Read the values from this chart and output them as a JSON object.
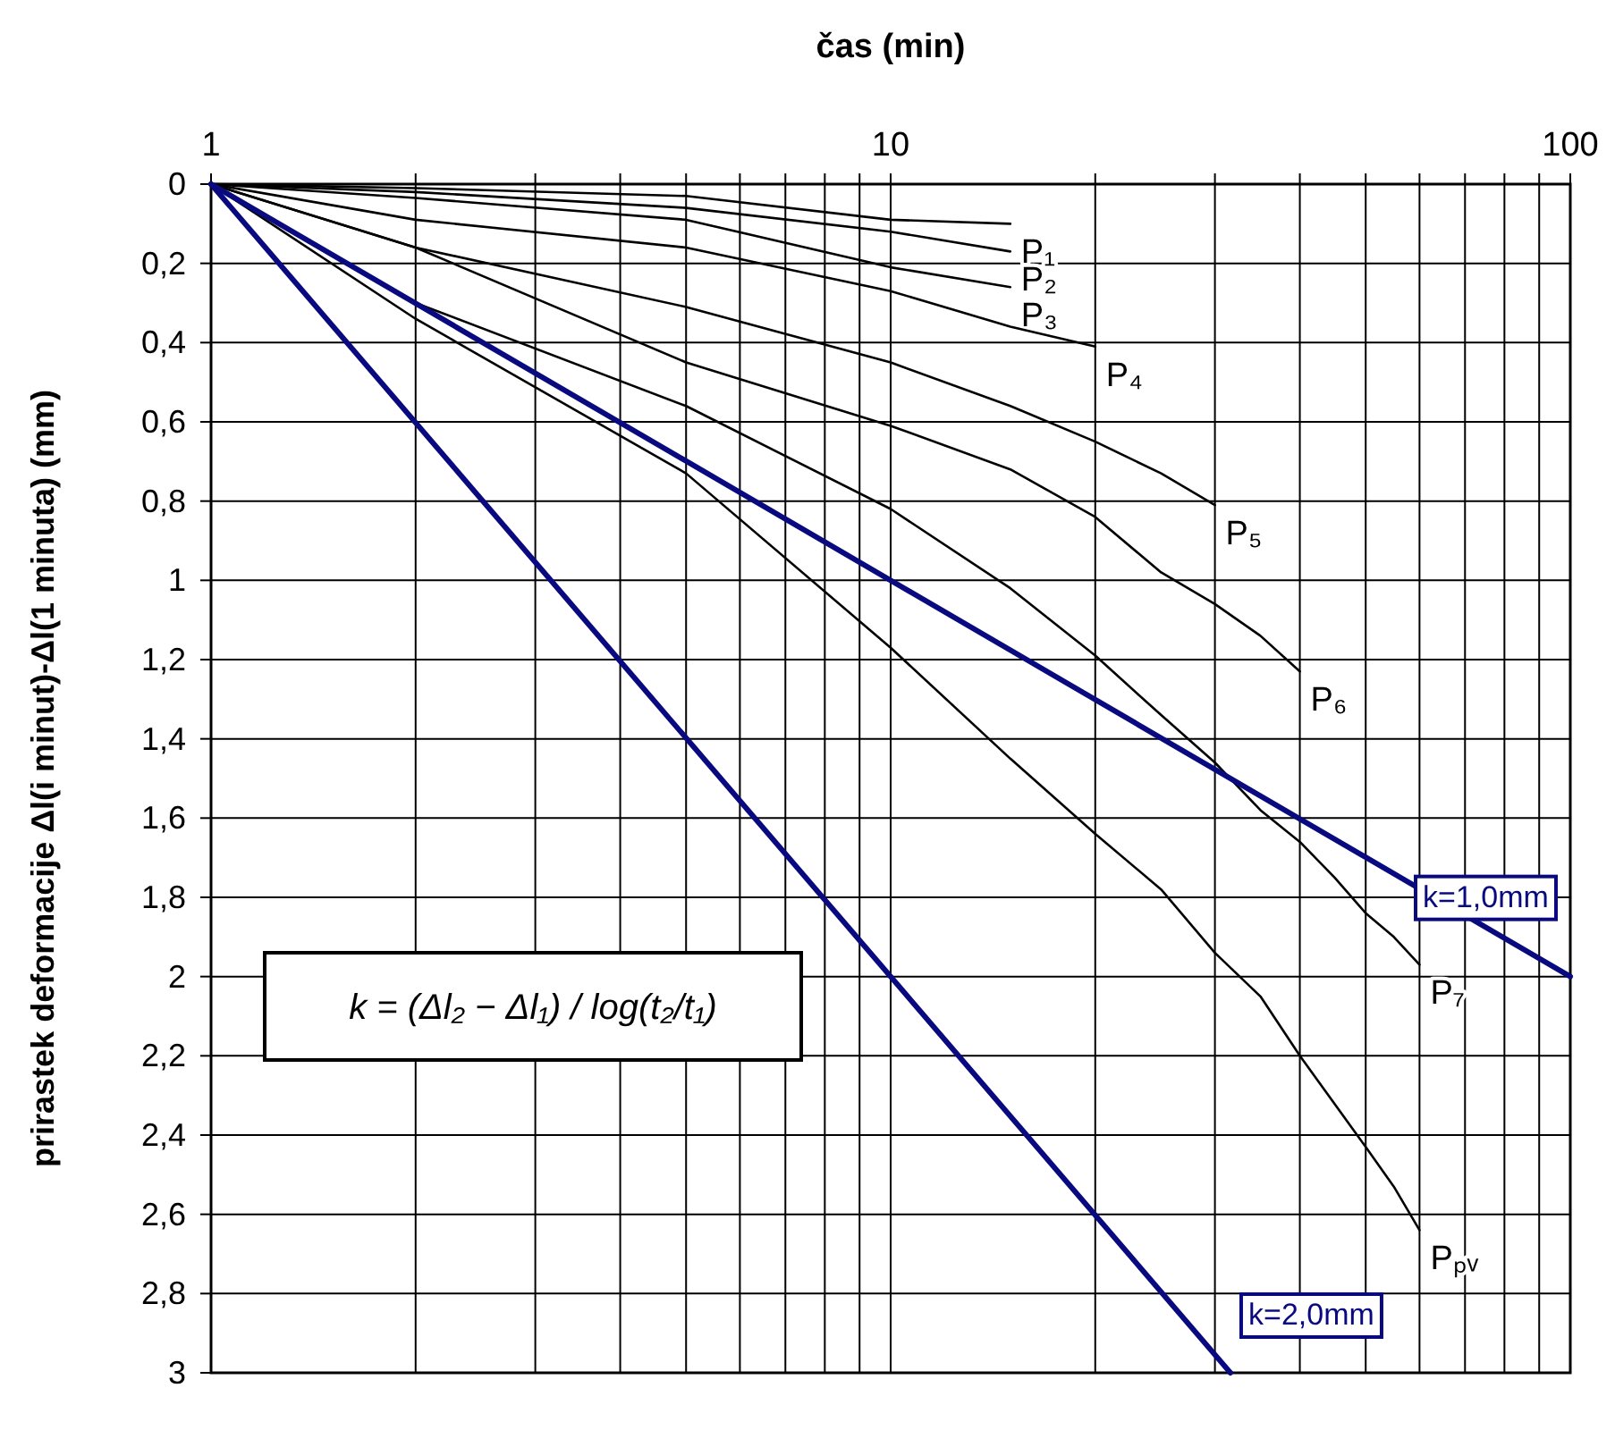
{
  "chart_data": {
    "type": "line",
    "xlabel": "čas (min)",
    "ylabel": "prirastek deformacije Δl(i minut)-Δl(1 minuta) (mm)",
    "log": "x",
    "grid": true,
    "marker": "none",
    "line_style": "solid",
    "xlim": [
      1,
      100
    ],
    "ylim": [
      3,
      0
    ],
    "xticks": [
      1,
      {
        "value": 2,
        "label": null
      },
      {
        "value": 3,
        "label": null
      },
      {
        "value": 4,
        "label": null
      },
      {
        "value": 5,
        "label": null
      },
      {
        "value": 6,
        "label": null
      },
      {
        "value": 7,
        "label": null
      },
      {
        "value": 8,
        "label": null
      },
      {
        "value": 9,
        "label": null
      },
      10,
      {
        "value": 20,
        "label": null
      },
      {
        "value": 30,
        "label": null
      },
      {
        "value": 40,
        "label": null
      },
      {
        "value": 50,
        "label": null
      },
      {
        "value": 60,
        "label": null
      },
      {
        "value": 70,
        "label": null
      },
      {
        "value": 80,
        "label": null
      },
      {
        "value": 90,
        "label": null
      },
      100
    ],
    "yticks": [
      0,
      {
        "value": 0.2,
        "label": "0,2"
      },
      {
        "value": 0.4,
        "label": "0,4"
      },
      {
        "value": 0.6,
        "label": "0,6"
      },
      {
        "value": 0.8,
        "label": "0,8"
      },
      1,
      {
        "value": 1.2,
        "label": "1,2"
      },
      {
        "value": 1.4,
        "label": "1,4"
      },
      {
        "value": 1.6,
        "label": "1,6"
      },
      {
        "value": 1.8,
        "label": "1,8"
      },
      2,
      {
        "value": 2.2,
        "label": "2,2"
      },
      {
        "value": 2.4,
        "label": "2,4"
      },
      {
        "value": 2.6,
        "label": "2,6"
      },
      {
        "value": 2.8,
        "label": "2,8"
      },
      3
    ],
    "series": [
      {
        "name": "P₁",
        "color": "#000000",
        "x": [
          1,
          2,
          5,
          10,
          15
        ],
        "values": [
          0,
          0.01,
          0.03,
          0.09,
          0.1
        ]
      },
      {
        "name": "P₂",
        "color": "#000000",
        "x": [
          1,
          2,
          5,
          10,
          15
        ],
        "values": [
          0,
          0.02,
          0.06,
          0.12,
          0.17
        ]
      },
      {
        "name": "P₃",
        "color": "#000000",
        "x": [
          1,
          2,
          5,
          10,
          15
        ],
        "values": [
          0,
          0.035,
          0.09,
          0.21,
          0.26
        ]
      },
      {
        "name": "P₄",
        "color": "#000000",
        "x": [
          1,
          2,
          5,
          10,
          15,
          20
        ],
        "values": [
          0,
          0.09,
          0.16,
          0.27,
          0.36,
          0.41
        ]
      },
      {
        "name": "P₅",
        "color": "#000000",
        "x": [
          1,
          2,
          5,
          10,
          15,
          20,
          25,
          30
        ],
        "values": [
          0,
          0.16,
          0.31,
          0.45,
          0.56,
          0.65,
          0.73,
          0.81
        ]
      },
      {
        "name": "P₆",
        "color": "#000000",
        "x": [
          1,
          2,
          5,
          10,
          15,
          20,
          25,
          30,
          35,
          40
        ],
        "values": [
          0,
          0.16,
          0.45,
          0.61,
          0.72,
          0.84,
          0.98,
          1.06,
          1.14,
          1.23
        ]
      },
      {
        "name": "P₇",
        "color": "#000000",
        "x": [
          1,
          2,
          5,
          10,
          15,
          20,
          25,
          30,
          35,
          40,
          45,
          50,
          55,
          60
        ],
        "values": [
          0,
          0.3,
          0.56,
          0.82,
          1.02,
          1.19,
          1.34,
          1.46,
          1.58,
          1.66,
          1.75,
          1.84,
          1.9,
          1.97
        ]
      },
      {
        "name": "Pₚᵥ",
        "color": "#000000",
        "x": [
          1,
          2,
          5,
          10,
          15,
          20,
          25,
          30,
          35,
          40,
          50,
          55,
          60
        ],
        "values": [
          0,
          0.34,
          0.73,
          1.17,
          1.45,
          1.64,
          1.78,
          1.94,
          2.05,
          2.2,
          2.43,
          2.53,
          2.64
        ]
      },
      {
        "name": "k=1,0mm",
        "color": "#0a0a80",
        "x": [
          1,
          100
        ],
        "values": [
          0,
          2
        ]
      },
      {
        "name": "k=2,0mm",
        "color": "#0a0a80",
        "x": [
          1,
          31.62
        ],
        "values": [
          0,
          3
        ]
      }
    ],
    "annotations": [
      "k = (Δl₂ − Δl₁) / log(t₂/t₁)"
    ]
  }
}
